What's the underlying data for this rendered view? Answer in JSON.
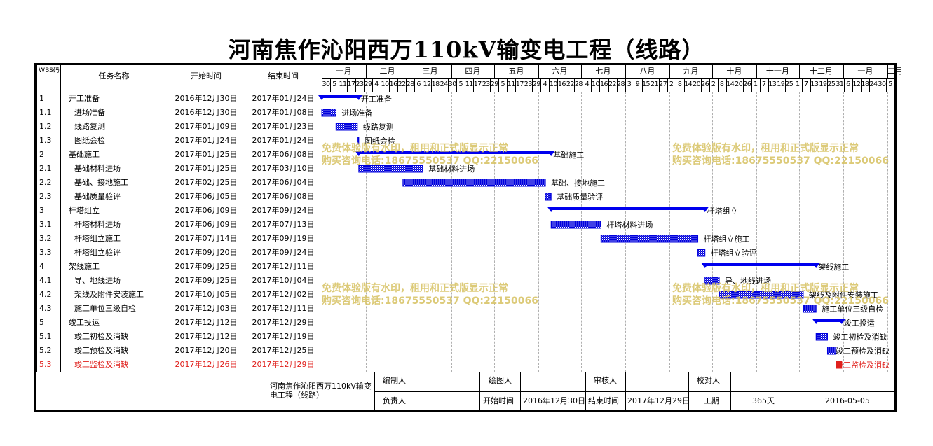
{
  "title": "河南焦作沁阳西万110kV输变电工程（线路）",
  "headers": {
    "wbs": "WBS码",
    "name": "任务名称",
    "start": "开始时间",
    "end": "结束时间"
  },
  "months": [
    "一月",
    "二月",
    "三月",
    "四月",
    "五月",
    "六月",
    "七月",
    "八月",
    "九月",
    "十月",
    "十一月",
    "十二月",
    "一月",
    "二月"
  ],
  "day_ticks": [
    "30",
    "5",
    "11",
    "17",
    "23",
    "29",
    "4",
    "10",
    "16",
    "22",
    "28",
    "6",
    "12",
    "18",
    "24",
    "30",
    "5",
    "11",
    "17",
    "23",
    "29",
    "5",
    "11",
    "17",
    "23",
    "29",
    "4",
    "10",
    "16",
    "22",
    "28",
    "4",
    "10",
    "16",
    "22",
    "28",
    "3",
    "9",
    "15",
    "21",
    "27",
    "2",
    "8",
    "14",
    "20",
    "26",
    "2",
    "8",
    "14",
    "20",
    "26",
    "1",
    "7",
    "13",
    "19",
    "25",
    "1",
    "7",
    "13",
    "19",
    "25",
    "31",
    "6",
    "12",
    "18",
    "24",
    "30",
    "5"
  ],
  "watermark": {
    "line1": "免费体验版有水印，租用和正式版显示正常",
    "line2": "购买咨询电话:18675550537 QQ:22150066"
  },
  "colors": {
    "bar": "#0000dd",
    "summary": "#0000ee",
    "critical": "#e0211d",
    "text_red": "#e0211d"
  },
  "chart_data": {
    "type": "gantt",
    "timescale": {
      "start": "2016-12-30",
      "end": "2018-02-07"
    },
    "tasks": [
      {
        "wbs": "1",
        "name": "开工准备",
        "start": "2016年12月30日",
        "end": "2017年01月24日",
        "s": "2016-12-30",
        "e": "2017-01-24",
        "summary": true,
        "level": 0
      },
      {
        "wbs": "1.1",
        "name": "进场准备",
        "start": "2016年12月30日",
        "end": "2017年01月08日",
        "s": "2016-12-30",
        "e": "2017-01-08",
        "summary": false,
        "level": 1
      },
      {
        "wbs": "1.2",
        "name": "线路复测",
        "start": "2017年01月09日",
        "end": "2017年01月23日",
        "s": "2017-01-09",
        "e": "2017-01-23",
        "summary": false,
        "level": 1
      },
      {
        "wbs": "1.3",
        "name": "图纸会检",
        "start": "2017年01月24日",
        "end": "2017年01月24日",
        "s": "2017-01-24",
        "e": "2017-01-24",
        "summary": false,
        "level": 1
      },
      {
        "wbs": "2",
        "name": "基础施工",
        "start": "2017年01月25日",
        "end": "2017年06月08日",
        "s": "2017-01-25",
        "e": "2017-06-08",
        "summary": true,
        "level": 0
      },
      {
        "wbs": "2.1",
        "name": "基础材料进场",
        "start": "2017年01月25日",
        "end": "2017年03月10日",
        "s": "2017-01-25",
        "e": "2017-03-10",
        "summary": false,
        "level": 1
      },
      {
        "wbs": "2.2",
        "name": "基础、接地施工",
        "start": "2017年02月25日",
        "end": "2017年06月04日",
        "s": "2017-02-25",
        "e": "2017-06-04",
        "summary": false,
        "level": 1
      },
      {
        "wbs": "2.3",
        "name": "基础质量验评",
        "start": "2017年06月05日",
        "end": "2017年06月08日",
        "s": "2017-06-05",
        "e": "2017-06-08",
        "summary": false,
        "level": 1
      },
      {
        "wbs": "3",
        "name": "杆塔组立",
        "start": "2017年06月09日",
        "end": "2017年09月24日",
        "s": "2017-06-09",
        "e": "2017-09-24",
        "summary": true,
        "level": 0
      },
      {
        "wbs": "3.1",
        "name": "杆塔材料进场",
        "start": "2017年06月09日",
        "end": "2017年07月13日",
        "s": "2017-06-09",
        "e": "2017-07-13",
        "summary": false,
        "level": 1
      },
      {
        "wbs": "3.2",
        "name": "杆塔组立施工",
        "start": "2017年07月14日",
        "end": "2017年09月19日",
        "s": "2017-07-14",
        "e": "2017-09-19",
        "summary": false,
        "level": 1
      },
      {
        "wbs": "3.3",
        "name": "杆塔组立验评",
        "start": "2017年09月20日",
        "end": "2017年09月24日",
        "s": "2017-09-20",
        "e": "2017-09-24",
        "summary": false,
        "level": 1
      },
      {
        "wbs": "4",
        "name": "架线施工",
        "start": "2017年09月25日",
        "end": "2017年12月11日",
        "s": "2017-09-25",
        "e": "2017-12-11",
        "summary": true,
        "level": 0
      },
      {
        "wbs": "4.1",
        "name": "导、地线进场",
        "start": "2017年09月25日",
        "end": "2017年10月04日",
        "s": "2017-09-25",
        "e": "2017-10-04",
        "summary": false,
        "level": 1
      },
      {
        "wbs": "4.2",
        "name": "架线及附件安装施工",
        "start": "2017年10月05日",
        "end": "2017年12月02日",
        "s": "2017-10-05",
        "e": "2017-12-02",
        "summary": false,
        "level": 1
      },
      {
        "wbs": "4.3",
        "name": "施工单位三级自检",
        "start": "2017年12月03日",
        "end": "2017年12月11日",
        "s": "2017-12-03",
        "e": "2017-12-11",
        "summary": false,
        "level": 1
      },
      {
        "wbs": "5",
        "name": "竣工投运",
        "start": "2017年12月12日",
        "end": "2017年12月29日",
        "s": "2017-12-12",
        "e": "2017-12-29",
        "summary": true,
        "level": 0
      },
      {
        "wbs": "5.1",
        "name": "竣工初检及消缺",
        "start": "2017年12月12日",
        "end": "2017年12月19日",
        "s": "2017-12-12",
        "e": "2017-12-19",
        "summary": false,
        "level": 1
      },
      {
        "wbs": "5.2",
        "name": "竣工预检及消缺",
        "start": "2017年12月20日",
        "end": "2017年12月25日",
        "s": "2017-12-20",
        "e": "2017-12-25",
        "summary": false,
        "level": 1
      },
      {
        "wbs": "5.3",
        "name": "竣工监检及消缺",
        "start": "2017年12月26日",
        "end": "2017年12月29日",
        "s": "2017-12-26",
        "e": "2017-12-29",
        "summary": false,
        "level": 1,
        "critical": true
      }
    ]
  },
  "footer": {
    "project": "河南焦作沁阳西万110kV输变电工程（线路）",
    "editor_label": "编制人",
    "drawer_label": "绘图人",
    "reviewer_label": "审核人",
    "checker_label": "校对人",
    "owner_label": "负责人",
    "start_label": "开始时间",
    "start_value": "2016年12月30日",
    "end_label": "结束时间",
    "end_value": "2017年12月29日",
    "duration_label": "工期",
    "duration_value": "365天",
    "date_value": "2016-05-05"
  }
}
